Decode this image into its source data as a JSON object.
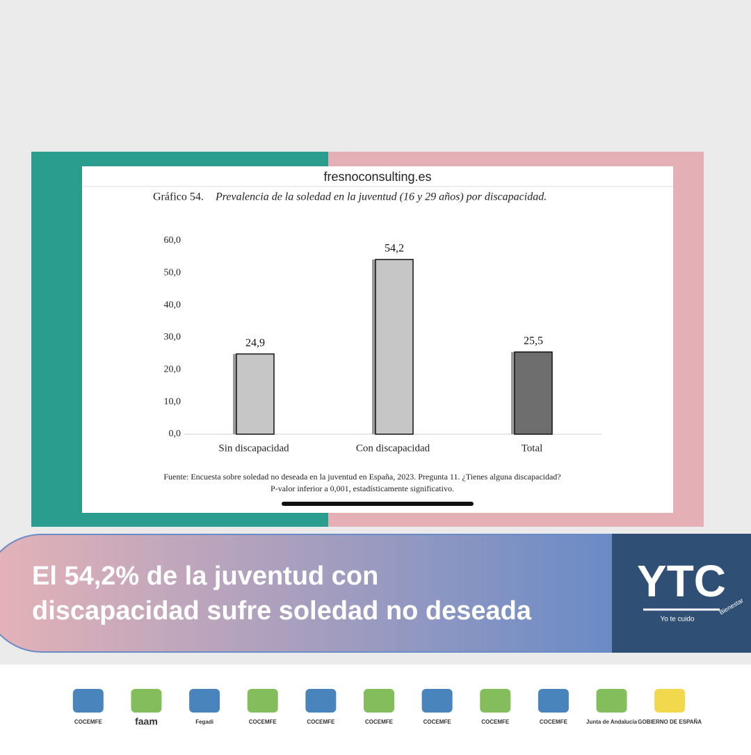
{
  "source_site": "fresnoconsulting.es",
  "chart_data": {
    "type": "bar",
    "title_prefix": "Gráfico 54.",
    "title": "Prevalencia de la soledad en la juventud (16 y 29 años) por discapacidad.",
    "categories": [
      "Sin discapacidad",
      "Con discapacidad",
      "Total"
    ],
    "values": [
      24.9,
      54.2,
      25.5
    ],
    "value_labels": [
      "24,9",
      "54,2",
      "25,5"
    ],
    "colors": [
      "#c6c6c6",
      "#c6c6c6",
      "#6e6e6e"
    ],
    "ylim": [
      0,
      60
    ],
    "yticks": [
      {
        "value": 0,
        "label": "0,0"
      },
      {
        "value": 10,
        "label": "10,0"
      },
      {
        "value": 20,
        "label": "20,0"
      },
      {
        "value": 30,
        "label": "30,0"
      },
      {
        "value": 40,
        "label": "40,0"
      },
      {
        "value": 50,
        "label": "50,0"
      },
      {
        "value": 60,
        "label": "60,0"
      }
    ],
    "notes": [
      "Fuente: Encuesta sobre soledad no deseada en la juventud en España, 2023. Pregunta 11. ¿Tienes alguna discapacidad?",
      "P-valor inferior a 0,001, estadísticamente significativo."
    ]
  },
  "banner": {
    "lines": [
      "El 54,2% de la juventud  con",
      "discapacidad sufre soledad no deseada"
    ]
  },
  "brand": {
    "logo": "YTC",
    "tagline": "Yo te cuido",
    "badge": "Bienestar"
  },
  "sponsors": [
    "COCEMFE",
    "faam",
    "Fegadi",
    "COCEMFE",
    "COCEMFE",
    "COCEMFE",
    "COCEMFE",
    "COCEMFE",
    "COCEMFE",
    "Junta de Andalucía",
    "GOBIERNO DE ESPAÑA"
  ]
}
